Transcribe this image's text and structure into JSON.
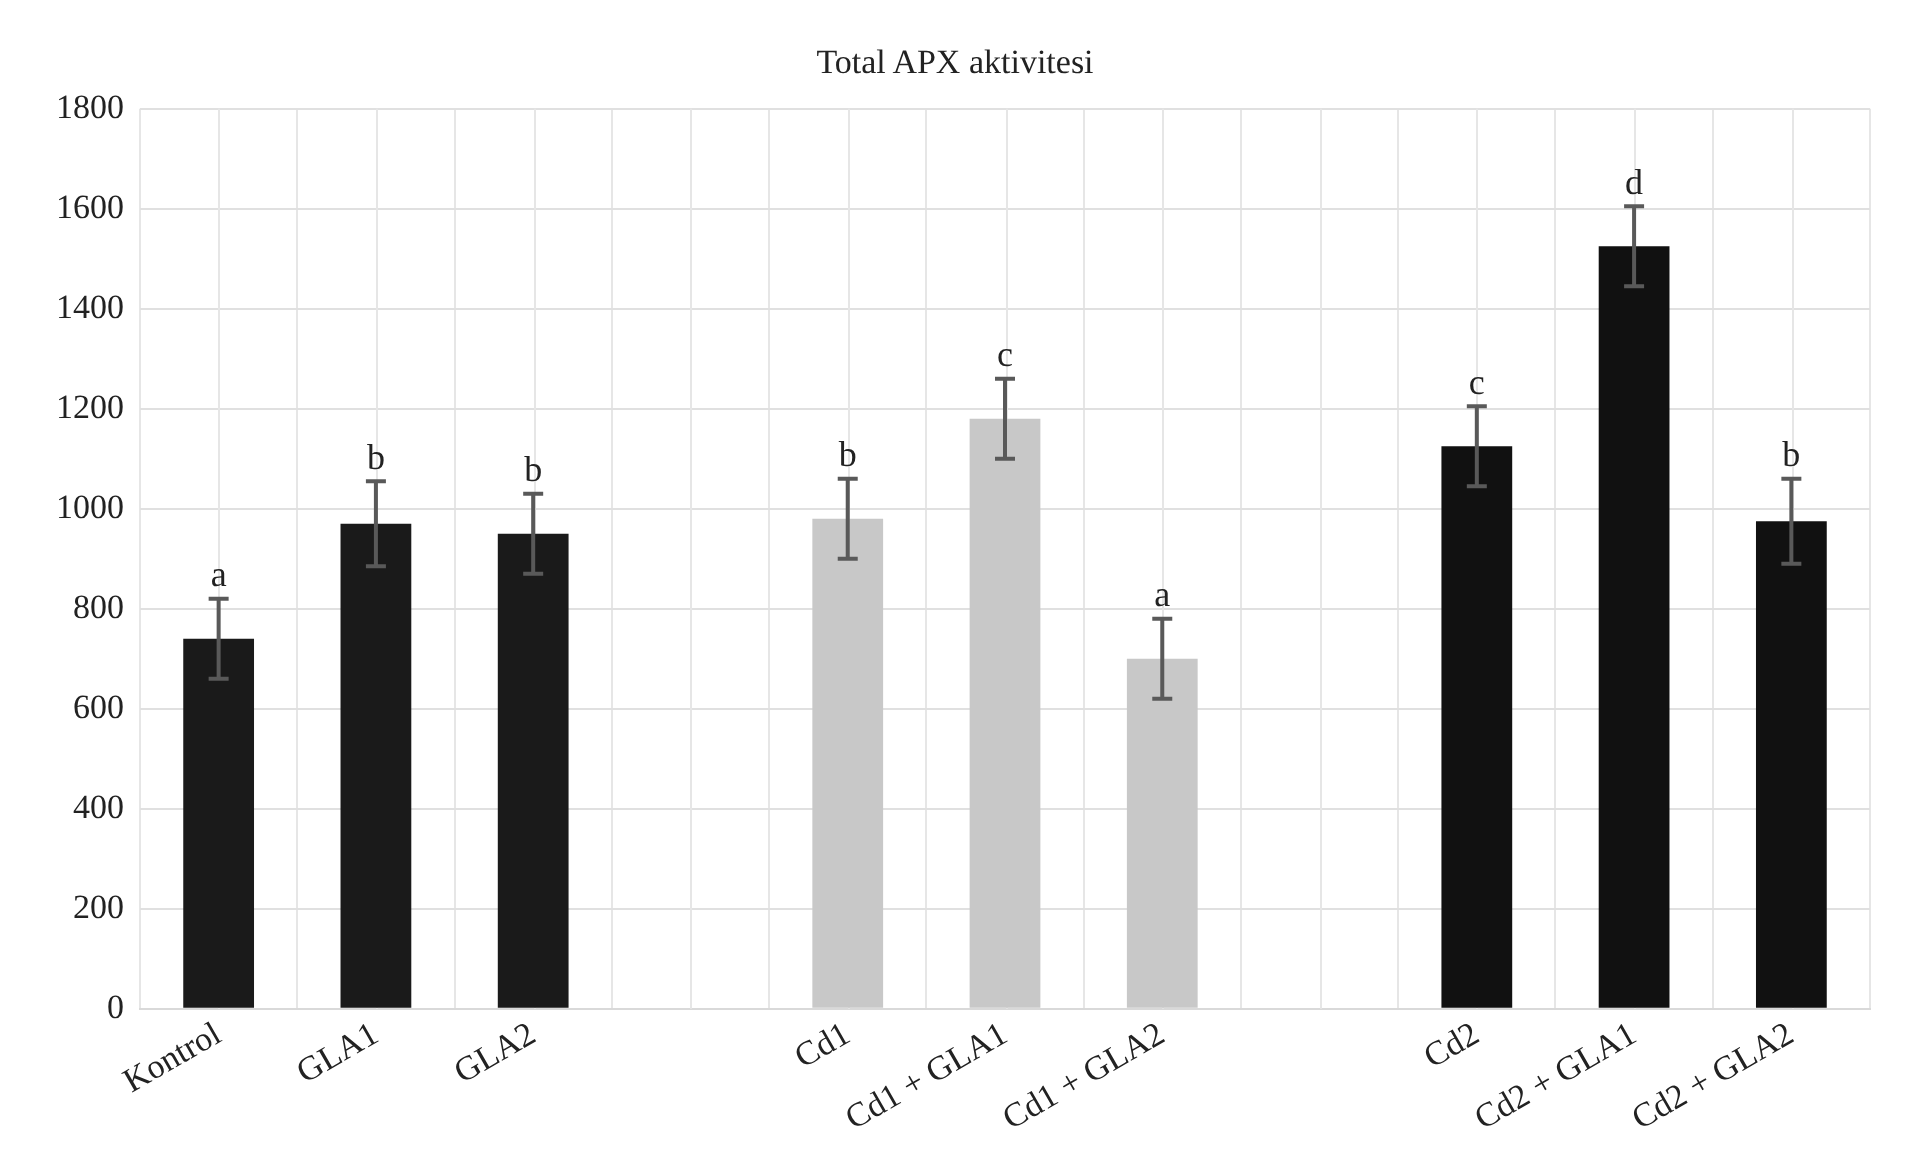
{
  "chart_data": {
    "type": "bar",
    "title": "Total APX aktivitesi",
    "categories": [
      "Kontrol",
      "GLA1",
      "GLA2",
      null,
      "Cd1",
      "Cd1 + GLA1",
      "Cd1 + GLA2",
      null,
      "Cd2",
      "Cd2 + GLA1",
      "Cd2 + GLA2"
    ],
    "values": [
      740,
      970,
      950,
      null,
      980,
      1180,
      700,
      null,
      1125,
      1525,
      975
    ],
    "errors": [
      80,
      85,
      80,
      null,
      80,
      80,
      80,
      null,
      80,
      80,
      85
    ],
    "colors": [
      "#1a1a1a",
      "#1a1a1a",
      "#1a1a1a",
      null,
      "#c8c8c8",
      "#c8c8c8",
      "#c8c8c8",
      null,
      "#111111",
      "#111111",
      "#111111"
    ],
    "ylim": [
      0,
      1800
    ],
    "yticks": [
      0,
      200,
      400,
      600,
      800,
      1000,
      1200,
      1400,
      1600,
      1800
    ],
    "grid": true,
    "legend": false,
    "annotations": [
      {
        "text": "a",
        "x": "Kontrol",
        "y": 820
      },
      {
        "text": "b",
        "x": "GLA1",
        "y": 1055
      },
      {
        "text": "b",
        "x": "GLA2",
        "y": 1030
      },
      {
        "text": "b",
        "x": "Cd1",
        "y": 1060
      },
      {
        "text": "c",
        "x": "Cd1 + GLA1",
        "y": 1260
      },
      {
        "text": "a",
        "x": "Cd1 + GLA2",
        "y": 780
      },
      {
        "text": "c",
        "x": "Cd2",
        "y": 1205
      },
      {
        "text": "d",
        "x": "Cd2 + GLA1",
        "y": 1605
      },
      {
        "text": "b",
        "x": "Cd2 + GLA2",
        "y": 1060
      }
    ]
  }
}
